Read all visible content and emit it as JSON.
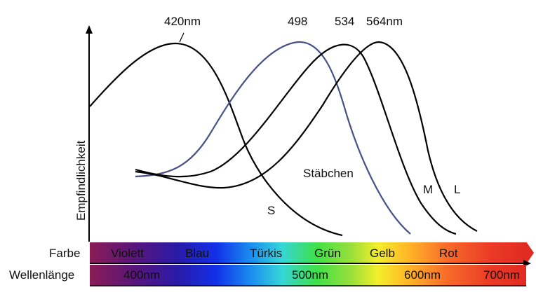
{
  "chart_data": {
    "type": "line",
    "ylabel": "Empfindlichkeit",
    "peak_labels": [
      {
        "text": "420nm",
        "color": "#111111"
      },
      {
        "text": "498",
        "color": "#3b3f7a"
      },
      {
        "text": "534",
        "color": "#111111"
      },
      {
        "text": "564nm",
        "color": "#111111"
      }
    ],
    "series": [
      {
        "name": "S",
        "color": "#000000",
        "peak_nm": 420
      },
      {
        "name": "Stäbchen",
        "color": "#4a4f86",
        "peak_nm": 498
      },
      {
        "name": "M",
        "color": "#000000",
        "peak_nm": 534
      },
      {
        "name": "L",
        "color": "#000000",
        "peak_nm": 564
      }
    ],
    "color_band": {
      "row_label": "Farbe",
      "names": [
        "Violett",
        "Blau",
        "Türkis",
        "Grün",
        "Gelb",
        "Rot"
      ]
    },
    "wavelength_band": {
      "row_label": "Wellenlänge",
      "ticks": [
        "400nm",
        "500nm",
        "600nm",
        "700nm"
      ]
    }
  }
}
